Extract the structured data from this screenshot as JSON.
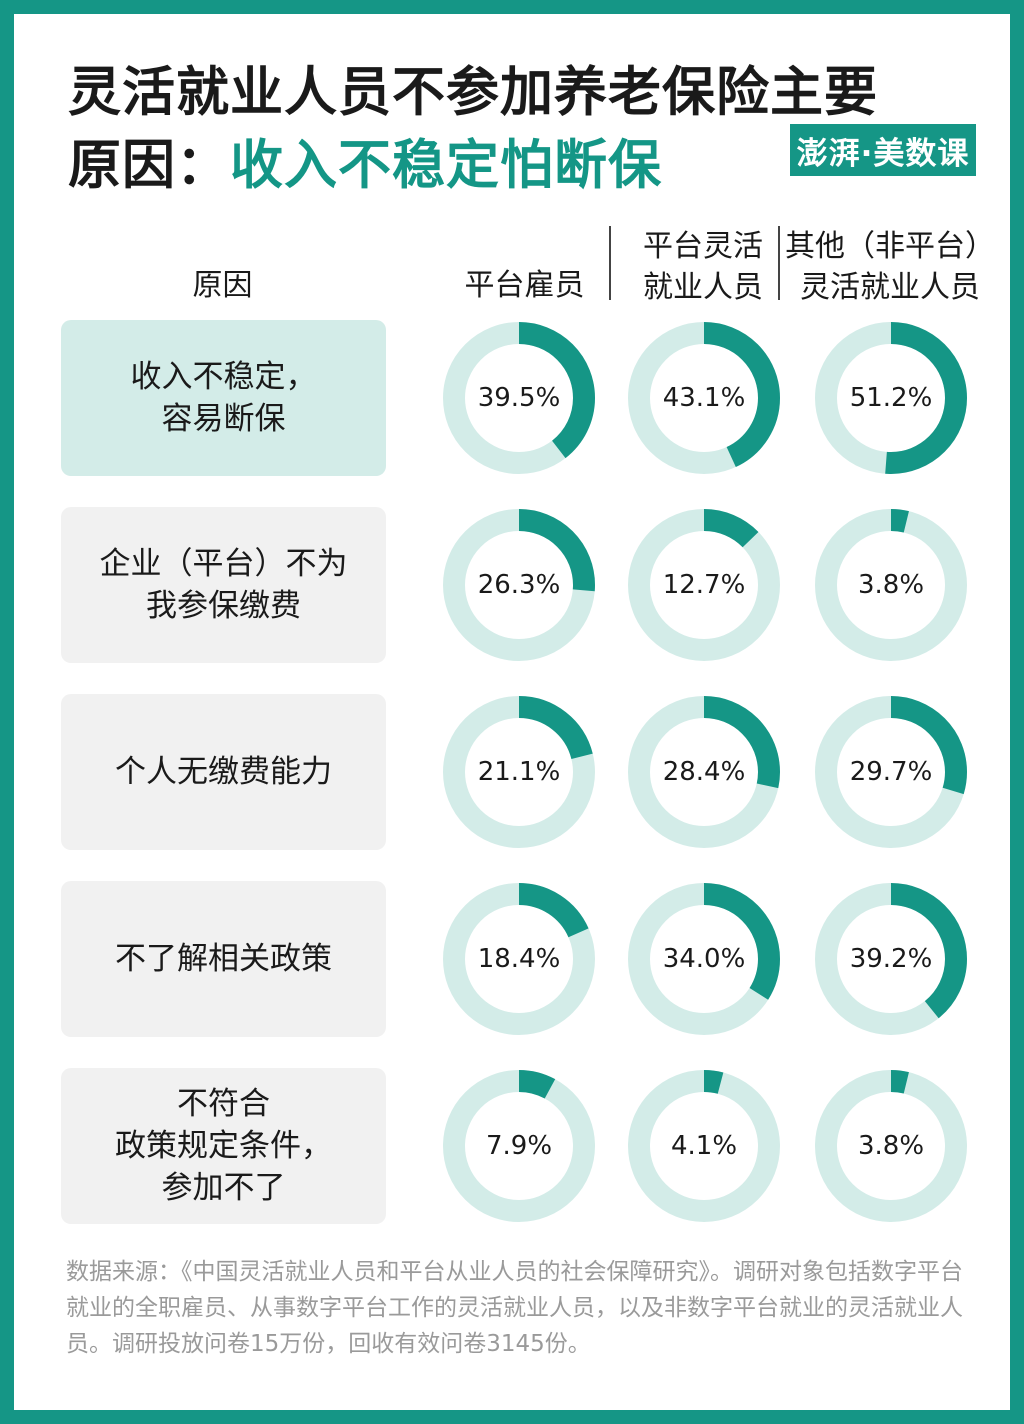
{
  "title_line1": "灵活就业人员不参加养老保险主要",
  "title_line2_prefix": "原因：",
  "title_line2_accent": "收入不稳定怕断保",
  "logo_text": "澎湃·美数课",
  "colors": {
    "accent": "#159686",
    "ring_track": "#d3ece8",
    "ring_fill": "#159686",
    "highlight_box": "#d3ece8",
    "box": "#f1f1f1"
  },
  "header": {
    "reason": "原因",
    "col1": "平台雇员",
    "col2": "平台灵活\n就业人员",
    "col3": "其他（非平台）\n灵活就业人员"
  },
  "chart_data": {
    "type": "donut-grid",
    "unit": "%",
    "series": [
      {
        "name": "平台雇员",
        "values": [
          39.5,
          26.3,
          21.1,
          18.4,
          7.9
        ]
      },
      {
        "name": "平台灵活就业人员",
        "values": [
          43.1,
          12.7,
          28.4,
          34.0,
          4.1
        ]
      },
      {
        "name": "其他（非平台）灵活就业人员",
        "values": [
          51.2,
          3.8,
          29.7,
          39.2,
          3.8
        ]
      }
    ],
    "categories": [
      "收入不稳定，\n容易断保",
      "企业（平台）不为\n我参保缴费",
      "个人无缴费能力",
      "不了解相关政策",
      "不符合\n政策规定条件，\n参加不了"
    ],
    "labels": [
      [
        "39.5%",
        "43.1%",
        "51.2%"
      ],
      [
        "26.3%",
        "12.7%",
        "3.8%"
      ],
      [
        "21.1%",
        "28.4%",
        "29.7%"
      ],
      [
        "18.4%",
        "34.0%",
        "39.2%"
      ],
      [
        "7.9%",
        "4.1%",
        "3.8%"
      ]
    ],
    "highlight_row": 0
  },
  "source": "数据来源：《中国灵活就业人员和平台从业人员的社会保障研究》。调研对象包括数字平台就业的全职雇员、从事数字平台工作的灵活就业人员，以及非数字平台就业的灵活就业人员。调研投放问卷15万份，回收有效问卷3145份。"
}
